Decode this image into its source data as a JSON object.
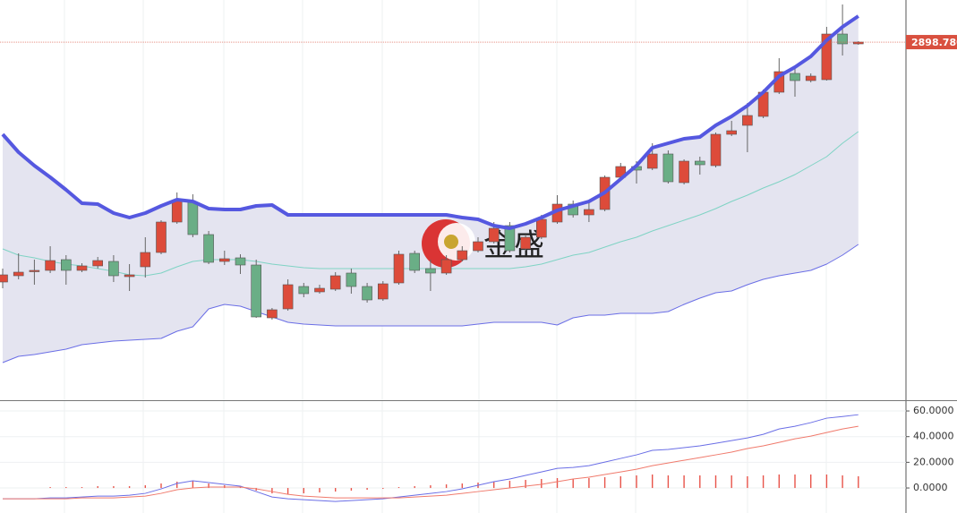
{
  "chart_data": [
    {
      "type": "candlestick",
      "up_color": "#dd4b3a",
      "down_color": "#6aae86",
      "open": [
        2764.8,
        2768.3,
        2770.8,
        2771.3,
        2777.3,
        2771.3,
        2773.8,
        2776.3,
        2767.8,
        2773.3,
        2781.3,
        2798.3,
        2809.3,
        2791.3,
        2776.3,
        2778.3,
        2774.3,
        2744.8,
        2749.8,
        2762.3,
        2759.3,
        2760.8,
        2769.8,
        2762.3,
        2755.3,
        2764.3,
        2780.8,
        2772.3,
        2769.8,
        2777.3,
        2782.3,
        2787.3,
        2796.3,
        2783.3,
        2789.8,
        2798.3,
        2808.3,
        2802.3,
        2805.3,
        2823.3,
        2829.3,
        2828.3,
        2836.3,
        2820.3,
        2832.3,
        2829.8,
        2847.3,
        2852.3,
        2857.3,
        2870.8,
        2881.3,
        2877.3,
        2877.8,
        2903.3,
        2897.8
      ],
      "high": [
        2772.3,
        2780.8,
        2777.3,
        2784.8,
        2779.8,
        2775.3,
        2778.8,
        2779.8,
        2774.8,
        2789.8,
        2799.3,
        2814.8,
        2813.8,
        2793.3,
        2782.3,
        2780.3,
        2777.3,
        2750.3,
        2766.3,
        2764.3,
        2763.3,
        2770.3,
        2772.3,
        2764.3,
        2765.3,
        2782.3,
        2782.3,
        2777.3,
        2779.8,
        2784.8,
        2789.8,
        2798.3,
        2798.3,
        2791.3,
        2802.3,
        2813.3,
        2810.3,
        2809.8,
        2824.3,
        2831.3,
        2832.3,
        2842.3,
        2838.3,
        2833.3,
        2834.8,
        2848.3,
        2854.8,
        2864.8,
        2872.3,
        2889.8,
        2884.8,
        2881.3,
        2907.3,
        2919.8,
        2899.3
      ],
      "low": [
        2761.3,
        2766.3,
        2763.3,
        2769.8,
        2763.3,
        2770.3,
        2772.3,
        2764.8,
        2759.8,
        2767.3,
        2780.3,
        2797.3,
        2789.8,
        2774.8,
        2774.3,
        2769.3,
        2744.8,
        2743.8,
        2748.8,
        2756.3,
        2758.3,
        2759.8,
        2758.3,
        2753.3,
        2754.3,
        2763.3,
        2769.8,
        2759.8,
        2768.8,
        2776.3,
        2781.3,
        2786.3,
        2781.3,
        2782.3,
        2788.8,
        2797.3,
        2800.8,
        2798.3,
        2804.3,
        2822.3,
        2819.8,
        2827.3,
        2819.8,
        2819.3,
        2824.8,
        2828.8,
        2846.3,
        2837.3,
        2856.3,
        2869.8,
        2868.3,
        2876.3,
        2877.3,
        2891.3,
        2897.3
      ],
      "close": [
        2768.8,
        2770.3,
        2771.3,
        2776.8,
        2771.3,
        2773.8,
        2776.8,
        2768.3,
        2768.8,
        2781.3,
        2798.3,
        2810.3,
        2791.3,
        2775.8,
        2777.8,
        2774.3,
        2745.3,
        2749.3,
        2763.3,
        2758.3,
        2761.3,
        2768.3,
        2762.3,
        2754.8,
        2763.8,
        2780.3,
        2771.3,
        2769.8,
        2777.3,
        2782.3,
        2787.3,
        2794.8,
        2782.3,
        2789.8,
        2799.8,
        2808.3,
        2802.3,
        2805.3,
        2823.3,
        2829.3,
        2827.3,
        2836.3,
        2820.8,
        2832.3,
        2830.3,
        2847.3,
        2849.3,
        2857.8,
        2870.8,
        2882.3,
        2877.3,
        2879.8,
        2903.3,
        2897.8,
        2898.8
      ],
      "series": [
        {
          "color": "#5558e0",
          "values": [
            2847.3,
            2837.3,
            2829.8,
            2823.3,
            2816.3,
            2808.8,
            2808.3,
            2803.3,
            2800.8,
            2803.3,
            2807.3,
            2810.8,
            2809.8,
            2805.8,
            2805.3,
            2805.3,
            2807.3,
            2807.8,
            2802.3,
            2802.3,
            2802.3,
            2802.3,
            2802.3,
            2802.3,
            2802.3,
            2802.3,
            2802.3,
            2802.3,
            2802.3,
            2800.8,
            2799.8,
            2796.3,
            2794.8,
            2797.3,
            2800.8,
            2804.8,
            2807.3,
            2809.8,
            2814.8,
            2822.3,
            2829.8,
            2839.8,
            2842.3,
            2844.8,
            2845.8,
            2852.3,
            2857.3,
            2863.3,
            2870.8,
            2879.8,
            2884.8,
            2890.8,
            2899.8,
            2907.3,
            2913.3
          ]
        },
        {
          "color": "#7fd3c4",
          "values": [
            2783.3,
            2779.8,
            2778.3,
            2776.3,
            2774.8,
            2773.8,
            2772.3,
            2770.8,
            2768.8,
            2768.3,
            2769.8,
            2773.3,
            2776.3,
            2777.3,
            2777.3,
            2777.3,
            2776.3,
            2774.8,
            2773.8,
            2772.8,
            2772.3,
            2772.3,
            2772.3,
            2772.3,
            2772.3,
            2772.3,
            2772.3,
            2772.3,
            2772.3,
            2772.3,
            2772.3,
            2772.3,
            2772.3,
            2773.3,
            2774.8,
            2777.3,
            2779.8,
            2781.3,
            2784.3,
            2787.3,
            2789.8,
            2793.3,
            2796.3,
            2799.3,
            2802.3,
            2805.8,
            2809.8,
            2813.3,
            2817.3,
            2820.8,
            2824.8,
            2829.8,
            2834.8,
            2842.3,
            2848.8
          ]
        },
        {
          "color": "#6a6ee6",
          "values": [
            2719.8,
            2723.3,
            2724.3,
            2725.8,
            2727.3,
            2729.8,
            2730.8,
            2731.8,
            2732.3,
            2732.8,
            2733.3,
            2737.3,
            2739.8,
            2749.8,
            2752.3,
            2751.3,
            2748.3,
            2745.3,
            2742.3,
            2741.3,
            2740.8,
            2740.3,
            2740.3,
            2740.3,
            2740.3,
            2740.3,
            2740.3,
            2740.3,
            2740.3,
            2740.3,
            2741.3,
            2742.3,
            2742.3,
            2742.3,
            2742.3,
            2740.8,
            2744.8,
            2746.3,
            2746.3,
            2747.3,
            2747.3,
            2747.3,
            2748.3,
            2752.3,
            2755.8,
            2758.8,
            2759.8,
            2763.3,
            2766.3,
            2768.3,
            2769.8,
            2771.3,
            2774.8,
            2779.8,
            2785.8
          ]
        }
      ],
      "band_fill": "#e4e4f0",
      "last_price": {
        "value": 2898.78,
        "label": "2898.780"
      },
      "last_price_color": "#d9503f",
      "watermark": "金盛",
      "ylim": [
        2698.8,
        2922.3
      ]
    },
    {
      "type": "line",
      "series": [
        {
          "color": "#6a6ee6",
          "values": [
            -8.4,
            -8.4,
            -8.4,
            -7.7,
            -7.7,
            -7.0,
            -6.3,
            -6.3,
            -5.6,
            -4.2,
            -0.7,
            3.5,
            5.6,
            4.2,
            2.8,
            1.4,
            -2.8,
            -7.0,
            -8.4,
            -9.1,
            -9.8,
            -10.5,
            -9.8,
            -9.1,
            -8.4,
            -7.0,
            -5.6,
            -4.2,
            -2.8,
            -0.7,
            2.1,
            4.9,
            7.0,
            9.8,
            12.5,
            15.3,
            16.0,
            17.4,
            20.2,
            23.0,
            25.8,
            29.3,
            30.0,
            31.4,
            32.8,
            34.8,
            36.9,
            39.0,
            41.8,
            46.0,
            48.1,
            50.9,
            54.4,
            55.7,
            57.1
          ]
        },
        {
          "color": "#f07a6c",
          "values": [
            -8.4,
            -8.4,
            -8.4,
            -8.4,
            -8.4,
            -7.7,
            -7.7,
            -7.7,
            -7.0,
            -6.3,
            -4.2,
            -1.4,
            0.0,
            0.7,
            0.7,
            0.7,
            -0.7,
            -2.8,
            -4.9,
            -6.3,
            -7.0,
            -7.7,
            -7.7,
            -7.7,
            -7.7,
            -7.7,
            -7.0,
            -6.3,
            -5.6,
            -4.2,
            -2.8,
            -1.4,
            0.0,
            1.4,
            2.8,
            4.9,
            7.0,
            8.4,
            10.5,
            12.5,
            14.6,
            17.4,
            19.5,
            21.6,
            23.7,
            25.8,
            27.9,
            30.7,
            32.8,
            35.5,
            38.3,
            40.4,
            43.2,
            46.0,
            48.1
          ]
        }
      ],
      "histogram": {
        "color": "#e8544a",
        "values": [
          0.0,
          0.0,
          0.0,
          0.7,
          0.7,
          0.7,
          1.4,
          1.4,
          1.4,
          2.1,
          3.5,
          4.9,
          5.6,
          3.5,
          2.1,
          0.7,
          -2.1,
          -4.2,
          -4.9,
          -4.2,
          -3.5,
          -2.8,
          -2.1,
          -1.4,
          -0.7,
          0.7,
          1.4,
          2.1,
          2.8,
          3.5,
          4.2,
          4.9,
          5.6,
          6.3,
          7.0,
          7.7,
          7.0,
          7.7,
          8.4,
          9.1,
          9.8,
          10.5,
          9.8,
          9.8,
          9.8,
          9.8,
          9.8,
          9.1,
          9.8,
          10.5,
          10.5,
          10.5,
          10.5,
          9.8,
          9.1
        ]
      },
      "ylim": [
        -19.5,
        66.3
      ],
      "yticks": [
        {
          "value": 60,
          "label": "60.0000"
        },
        {
          "value": 40,
          "label": "40.0000"
        },
        {
          "value": 20,
          "label": "20.0000"
        },
        {
          "value": 0,
          "label": "0.0000"
        }
      ],
      "grid": true
    }
  ]
}
